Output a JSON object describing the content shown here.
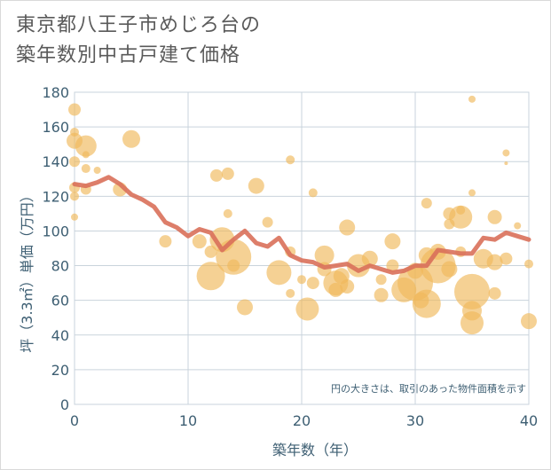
{
  "title": {
    "line1": "東京都八王子市めじろ台の",
    "line2": "築年数別中古戸建て価格"
  },
  "note": "円の大きさは、取引のあった物件面積を示す",
  "colors": {
    "bubble": "#f0b85a",
    "line": "#d9705a",
    "grid": "#c9d3dc",
    "axis_text": "#3e5f73"
  },
  "chart_data": {
    "type": "scatter",
    "xlabel": "築年数（年）",
    "ylabel": "坪（3.3㎡）単価（万円）",
    "xlim": [
      0,
      40
    ],
    "ylim": [
      0,
      180
    ],
    "xticks": [
      0,
      10,
      20,
      30,
      40
    ],
    "yticks": [
      0,
      20,
      40,
      60,
      80,
      100,
      120,
      140,
      160,
      180
    ],
    "grid": "x-and-y",
    "series": [
      {
        "type": "bubble",
        "points": [
          {
            "x": 0,
            "y": 170,
            "s": 7
          },
          {
            "x": 0,
            "y": 157,
            "s": 5
          },
          {
            "x": 0,
            "y": 152,
            "s": 9
          },
          {
            "x": 0,
            "y": 140,
            "s": 6
          },
          {
            "x": 0,
            "y": 125,
            "s": 6
          },
          {
            "x": 0,
            "y": 120,
            "s": 5
          },
          {
            "x": 0,
            "y": 108,
            "s": 4
          },
          {
            "x": 1,
            "y": 149,
            "s": 12
          },
          {
            "x": 1,
            "y": 136,
            "s": 5
          },
          {
            "x": 1,
            "y": 124,
            "s": 6
          },
          {
            "x": 1,
            "y": 144,
            "s": 4
          },
          {
            "x": 2,
            "y": 135,
            "s": 4
          },
          {
            "x": 4,
            "y": 124,
            "s": 8
          },
          {
            "x": 5,
            "y": 153,
            "s": 10
          },
          {
            "x": 8,
            "y": 94,
            "s": 7
          },
          {
            "x": 11,
            "y": 94,
            "s": 8
          },
          {
            "x": 12,
            "y": 74,
            "s": 16
          },
          {
            "x": 12,
            "y": 88,
            "s": 7
          },
          {
            "x": 12.5,
            "y": 132,
            "s": 7
          },
          {
            "x": 13,
            "y": 95,
            "s": 14
          },
          {
            "x": 13.5,
            "y": 133,
            "s": 7
          },
          {
            "x": 13.5,
            "y": 110,
            "s": 5
          },
          {
            "x": 14,
            "y": 85,
            "s": 20
          },
          {
            "x": 14,
            "y": 80,
            "s": 7
          },
          {
            "x": 15,
            "y": 56,
            "s": 9
          },
          {
            "x": 16,
            "y": 126,
            "s": 9
          },
          {
            "x": 17,
            "y": 105,
            "s": 6
          },
          {
            "x": 18,
            "y": 76,
            "s": 14
          },
          {
            "x": 19,
            "y": 141,
            "s": 5
          },
          {
            "x": 19,
            "y": 88,
            "s": 6
          },
          {
            "x": 19,
            "y": 64,
            "s": 5
          },
          {
            "x": 20,
            "y": 72,
            "s": 5
          },
          {
            "x": 20.5,
            "y": 55,
            "s": 13
          },
          {
            "x": 21,
            "y": 122,
            "s": 5
          },
          {
            "x": 21,
            "y": 70,
            "s": 7
          },
          {
            "x": 22,
            "y": 86,
            "s": 11
          },
          {
            "x": 22,
            "y": 78,
            "s": 8
          },
          {
            "x": 23,
            "y": 70,
            "s": 14
          },
          {
            "x": 23,
            "y": 66,
            "s": 8
          },
          {
            "x": 23.5,
            "y": 74,
            "s": 9
          },
          {
            "x": 24,
            "y": 102,
            "s": 9
          },
          {
            "x": 24,
            "y": 68,
            "s": 8
          },
          {
            "x": 25,
            "y": 80,
            "s": 13
          },
          {
            "x": 26,
            "y": 84,
            "s": 9
          },
          {
            "x": 27,
            "y": 72,
            "s": 6
          },
          {
            "x": 27,
            "y": 63,
            "s": 8
          },
          {
            "x": 28,
            "y": 94,
            "s": 9
          },
          {
            "x": 28,
            "y": 80,
            "s": 7
          },
          {
            "x": 29,
            "y": 66,
            "s": 14
          },
          {
            "x": 30,
            "y": 70,
            "s": 20
          },
          {
            "x": 30,
            "y": 77,
            "s": 9
          },
          {
            "x": 30.5,
            "y": 60,
            "s": 9
          },
          {
            "x": 31,
            "y": 116,
            "s": 6
          },
          {
            "x": 31,
            "y": 86,
            "s": 9
          },
          {
            "x": 31,
            "y": 58,
            "s": 16
          },
          {
            "x": 32,
            "y": 80,
            "s": 20
          },
          {
            "x": 32,
            "y": 88,
            "s": 9
          },
          {
            "x": 33,
            "y": 78,
            "s": 9
          },
          {
            "x": 33,
            "y": 104,
            "s": 6
          },
          {
            "x": 33,
            "y": 110,
            "s": 7
          },
          {
            "x": 34,
            "y": 108,
            "s": 13
          },
          {
            "x": 34,
            "y": 112,
            "s": 5
          },
          {
            "x": 34,
            "y": 88,
            "s": 6
          },
          {
            "x": 35,
            "y": 176,
            "s": 4
          },
          {
            "x": 35,
            "y": 122,
            "s": 4
          },
          {
            "x": 35,
            "y": 65,
            "s": 20
          },
          {
            "x": 35,
            "y": 54,
            "s": 11
          },
          {
            "x": 35,
            "y": 47,
            "s": 13
          },
          {
            "x": 36,
            "y": 84,
            "s": 11
          },
          {
            "x": 37,
            "y": 108,
            "s": 8
          },
          {
            "x": 37,
            "y": 82,
            "s": 9
          },
          {
            "x": 37,
            "y": 64,
            "s": 7
          },
          {
            "x": 38,
            "y": 145,
            "s": 4
          },
          {
            "x": 38,
            "y": 139,
            "s": 2
          },
          {
            "x": 38,
            "y": 84,
            "s": 7
          },
          {
            "x": 39,
            "y": 103,
            "s": 4
          },
          {
            "x": 40,
            "y": 81,
            "s": 5
          },
          {
            "x": 40,
            "y": 48,
            "s": 9
          }
        ]
      },
      {
        "type": "line",
        "x": [
          0,
          1,
          2,
          3,
          4,
          5,
          6,
          7,
          8,
          9,
          10,
          11,
          12,
          13,
          14,
          15,
          16,
          17,
          18,
          19,
          20,
          21,
          22,
          23,
          24,
          25,
          26,
          27,
          28,
          29,
          30,
          31,
          32,
          33,
          34,
          35,
          36,
          37,
          38,
          39,
          40
        ],
        "y": [
          127,
          126,
          128,
          131,
          127,
          121,
          118,
          114,
          105,
          102,
          97,
          101,
          99,
          89,
          95,
          100,
          93,
          91,
          96,
          86,
          83,
          82,
          79,
          80,
          81,
          77,
          80,
          78,
          76,
          77,
          80,
          80,
          89,
          88,
          87,
          87,
          96,
          95,
          99,
          97,
          95
        ]
      }
    ]
  }
}
